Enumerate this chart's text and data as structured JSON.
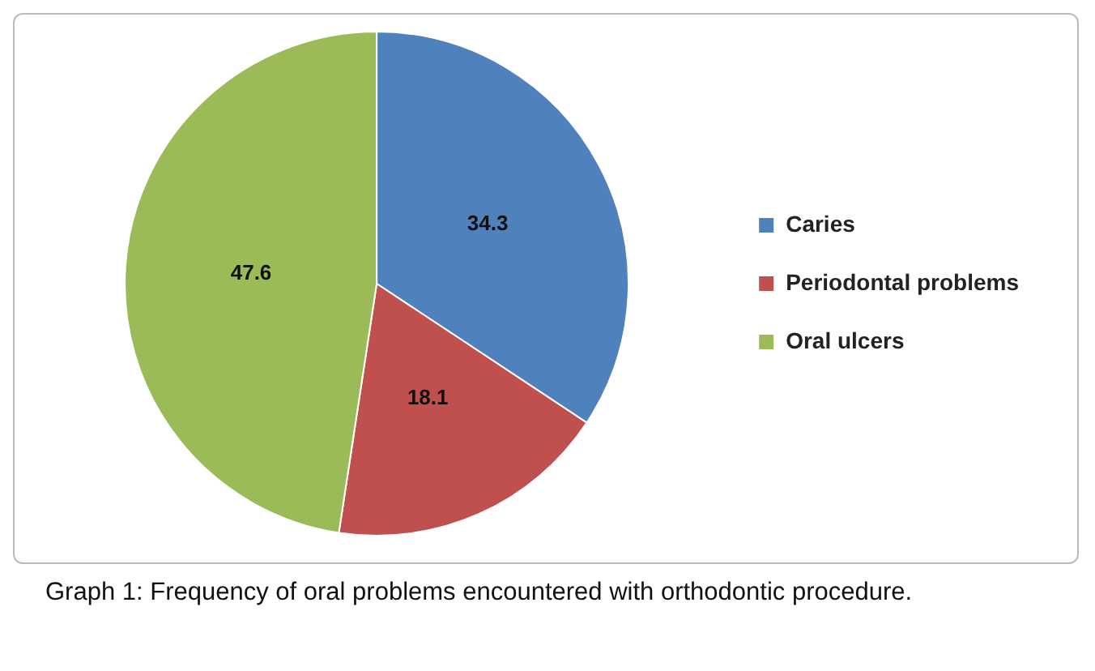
{
  "chart_data": {
    "type": "pie",
    "categories": [
      "Caries",
      "Periodontal problems",
      "Oral ulcers"
    ],
    "values": [
      34.3,
      18.1,
      47.6
    ],
    "colors": [
      "#4f81bd",
      "#c0504d",
      "#9bbb59"
    ],
    "data_labels": true,
    "legend": "right",
    "annotations": [
      "Graph 1: Frequency of oral problems encountered with orthodontic procedure."
    ]
  }
}
